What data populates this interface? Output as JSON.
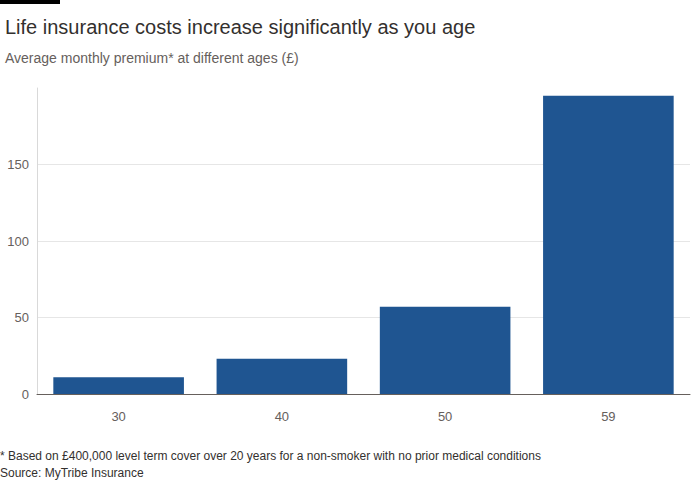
{
  "chart_data": {
    "type": "bar",
    "title": "Life insurance costs increase significantly as you age",
    "subtitle": "Average monthly premium* at different ages (£)",
    "categories": [
      "30",
      "40",
      "50",
      "59"
    ],
    "values": [
      11,
      23,
      57,
      195
    ],
    "color": "#1f5591",
    "ylim": [
      0,
      200
    ],
    "yticks": [
      0,
      50,
      100,
      150
    ],
    "grid": true,
    "annotations": [
      "* Based on £400,000 level term cover over 20 years for a non-smoker with no prior medical conditions",
      "Source: MyTribe Insurance"
    ]
  }
}
